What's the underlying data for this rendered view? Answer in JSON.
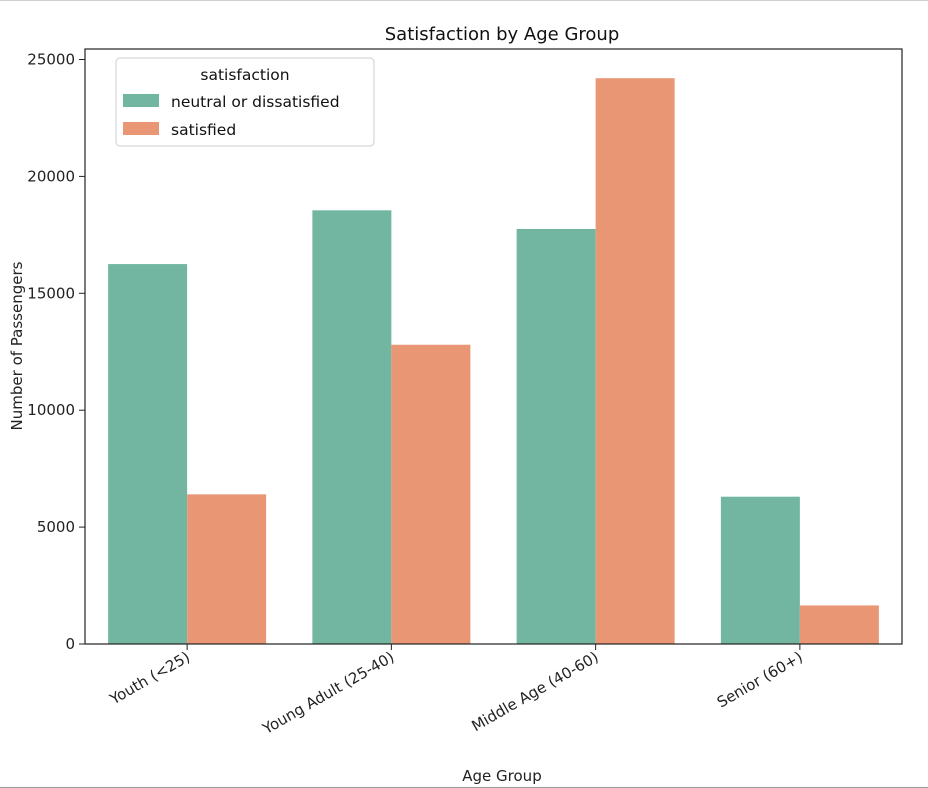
{
  "chart_data": {
    "type": "bar",
    "title": "Satisfaction by Age Group",
    "xlabel": "Age Group",
    "ylabel": "Number of Passengers",
    "categories": [
      "Youth (<25)",
      "Young Adult (25-40)",
      "Middle Age (40-60)",
      "Senior (60+)"
    ],
    "series": [
      {
        "name": "neutral or dissatisfied",
        "values": [
          16250,
          18550,
          17750,
          6300
        ],
        "color": "#72b6a1"
      },
      {
        "name": "satisfied",
        "values": [
          6400,
          12800,
          24200,
          1650
        ],
        "color": "#e99675"
      }
    ],
    "ylim": [
      0,
      25000
    ],
    "yticks": [
      0,
      5000,
      10000,
      15000,
      20000,
      25000
    ],
    "ytick_labels": [
      "0",
      "5000",
      "10000",
      "15000",
      "20000",
      "25000"
    ],
    "legend": {
      "title": "satisfaction",
      "placement": "top-left"
    },
    "grid": false
  }
}
